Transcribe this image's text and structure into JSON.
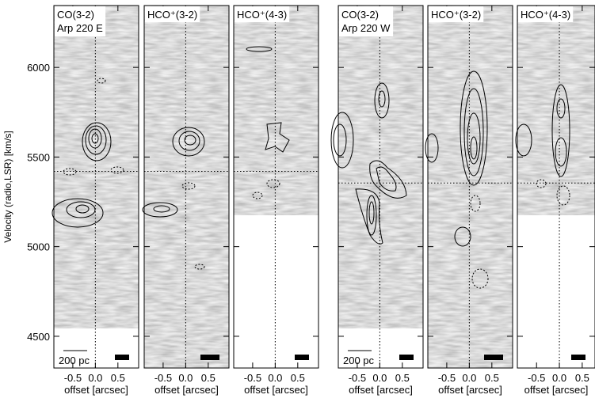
{
  "chart_data": [
    {
      "type": "image",
      "title": "CO(3-2)",
      "subtitle": "Arp 220 E",
      "scale_bar_label": "200 pc",
      "ylabel": "Velocity (radio,LSR) [km/s]",
      "xlabel": "offset [arcsec]",
      "xlim": [
        -0.92,
        0.96
      ],
      "xticks": [
        -0.5,
        {
          "value": 0,
          "label": "0.0"
        },
        0.5
      ],
      "ylim": [
        4323,
        6345
      ],
      "yticks": [
        4500,
        5000,
        5500,
        6000
      ],
      "reference_velocity": 5420,
      "velocity_coverage": [
        4545,
        6345
      ]
    },
    {
      "type": "image",
      "title": "HCO⁺(3-2)",
      "xlabel": "offset [arcsec]",
      "xlim": [
        -0.92,
        0.96
      ],
      "xticks": [
        -0.5,
        {
          "value": 0,
          "label": "0.0"
        },
        0.5
      ],
      "ylim": [
        4323,
        6345
      ],
      "yticks": [
        4500,
        5000,
        5500,
        6000
      ],
      "reference_velocity": 5420,
      "velocity_coverage": [
        4323,
        6345
      ]
    },
    {
      "type": "image",
      "title": "HCO⁺(4-3)",
      "xlabel": "offset [arcsec]",
      "xlim": [
        -0.92,
        0.96
      ],
      "xticks": [
        -0.5,
        {
          "value": 0,
          "label": "0.0"
        },
        0.5
      ],
      "ylim": [
        4323,
        6345
      ],
      "yticks": [
        4500,
        5000,
        5500,
        6000
      ],
      "reference_velocity": 5420,
      "velocity_coverage": [
        5177,
        6345
      ]
    },
    {
      "type": "image",
      "title": "CO(3-2)",
      "subtitle": "Arp 220 W",
      "scale_bar_label": "200 pc",
      "xlabel": "offset [arcsec]",
      "xlim": [
        -0.92,
        0.96
      ],
      "xticks": [
        -0.5,
        {
          "value": 0,
          "label": "0.0"
        },
        0.5
      ],
      "ylim": [
        4323,
        6345
      ],
      "yticks": [
        4500,
        5000,
        5500,
        6000
      ],
      "reference_velocity": 5355,
      "velocity_coverage": [
        4545,
        6345
      ]
    },
    {
      "type": "image",
      "title": "HCO⁺(3-2)",
      "xlabel": "offset [arcsec]",
      "xlim": [
        -0.92,
        0.96
      ],
      "xticks": [
        -0.5,
        {
          "value": 0,
          "label": "0.0"
        },
        0.5
      ],
      "ylim": [
        4323,
        6345
      ],
      "yticks": [
        4500,
        5000,
        5500,
        6000
      ],
      "reference_velocity": 5355,
      "velocity_coverage": [
        4323,
        6345
      ]
    },
    {
      "type": "image",
      "title": "HCO⁺(4-3)",
      "xlabel": "offset [arcsec]",
      "xlim": [
        -0.92,
        0.78
      ],
      "xticks": [
        -0.5,
        {
          "value": 0,
          "label": "0.0"
        },
        0.5
      ],
      "ylim": [
        4323,
        6345
      ],
      "yticks": [
        4500,
        5000,
        5500,
        6000
      ],
      "reference_velocity": 5355,
      "velocity_coverage": [
        5177,
        6345
      ]
    }
  ]
}
